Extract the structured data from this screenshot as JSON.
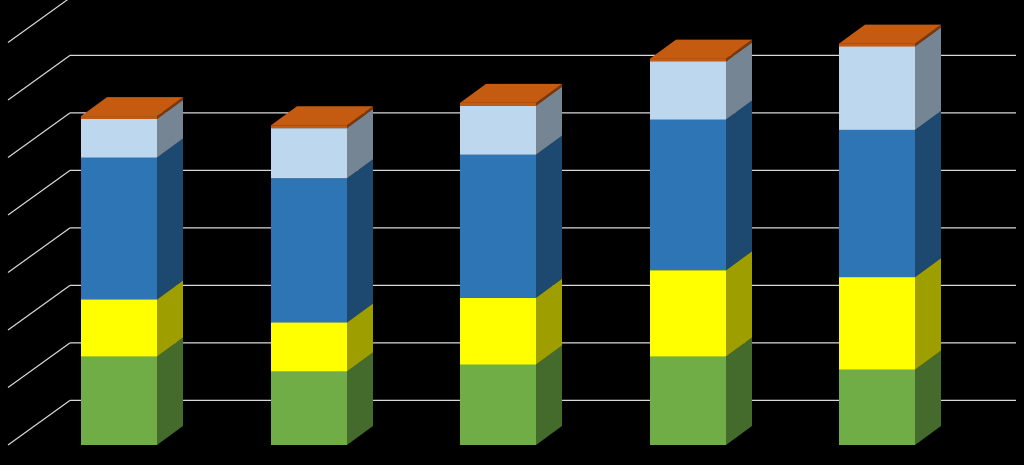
{
  "chart_data": {
    "type": "bar",
    "stacked": true,
    "three_d": true,
    "title": "",
    "xlabel": "",
    "ylabel": "",
    "ylim": [
      0,
      8
    ],
    "grid": true,
    "legend": "none",
    "categories": [
      "",
      "",
      "",
      "",
      ""
    ],
    "series": [
      {
        "color": "#70AD47",
        "values": [
          1.54,
          1.28,
          1.4,
          1.54,
          1.31
        ]
      },
      {
        "color": "#FFFF00",
        "values": [
          0.99,
          0.85,
          1.16,
          1.5,
          1.61
        ]
      },
      {
        "color": "#2E75B6",
        "values": [
          2.47,
          2.51,
          2.49,
          2.62,
          2.56
        ]
      },
      {
        "color": "#BDD7EE",
        "values": [
          0.67,
          0.87,
          0.85,
          1.01,
          1.45
        ]
      },
      {
        "color": "#C55A11",
        "values": [
          0.05,
          0.05,
          0.05,
          0.05,
          0.05
        ]
      }
    ]
  },
  "colors": {
    "background": "#000000",
    "gridline": "#D9D9D9"
  }
}
